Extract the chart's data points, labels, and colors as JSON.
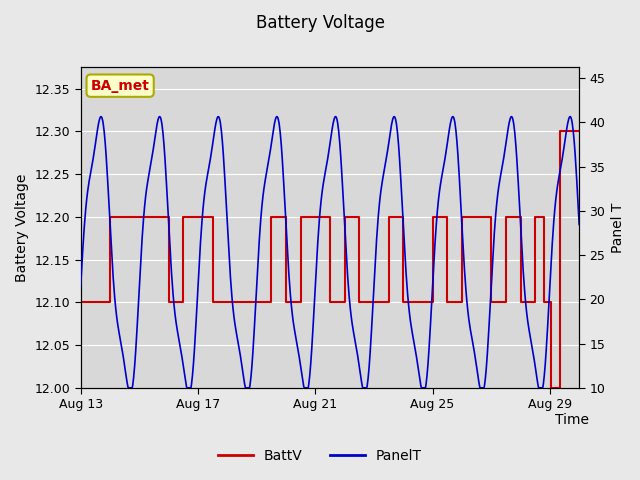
{
  "title": "Battery Voltage",
  "xlabel": "Time",
  "ylabel_left": "Battery Voltage",
  "ylabel_right": "Panel T",
  "ylim_left": [
    12.0,
    12.375
  ],
  "ylim_right": [
    10,
    46.25
  ],
  "xlim": [
    0,
    17
  ],
  "xtick_positions": [
    0,
    4,
    8,
    12,
    16
  ],
  "xtick_labels": [
    "Aug 13",
    "Aug 17",
    "Aug 21",
    "Aug 25",
    "Aug 29"
  ],
  "ytick_left": [
    12.0,
    12.05,
    12.1,
    12.15,
    12.2,
    12.25,
    12.3,
    12.35
  ],
  "ytick_right": [
    10,
    15,
    20,
    25,
    30,
    35,
    40,
    45
  ],
  "bg_color": "#e8e8e8",
  "plot_bg_color": "#d8d8d8",
  "annotation_text": "BA_met",
  "annotation_color": "#cc0000",
  "annotation_bg": "#ffffcc",
  "annotation_border": "#aaaa00",
  "batt_color": "#cc0000",
  "panel_color": "#0000cc",
  "legend_batt": "BattV",
  "legend_panel": "PanelT",
  "bv_steps_x": [
    0,
    1.0,
    1.0,
    3.0,
    3.0,
    3.5,
    3.5,
    4.5,
    4.5,
    6.5,
    6.5,
    7.0,
    7.0,
    7.5,
    7.5,
    8.5,
    8.5,
    9.0,
    9.0,
    9.5,
    9.5,
    10.5,
    10.5,
    11.0,
    11.0,
    12.0,
    12.0,
    12.5,
    12.5,
    13.0,
    13.0,
    14.0,
    14.0,
    14.5,
    14.5,
    15.0,
    15.0,
    15.5,
    15.5,
    15.8,
    15.8,
    16.05,
    16.05,
    16.35,
    16.35,
    17.0
  ],
  "bv_steps_y": [
    12.1,
    12.1,
    12.2,
    12.2,
    12.1,
    12.1,
    12.2,
    12.2,
    12.1,
    12.1,
    12.2,
    12.2,
    12.1,
    12.1,
    12.2,
    12.2,
    12.1,
    12.1,
    12.2,
    12.2,
    12.1,
    12.1,
    12.2,
    12.2,
    12.1,
    12.1,
    12.2,
    12.2,
    12.1,
    12.1,
    12.2,
    12.2,
    12.1,
    12.1,
    12.2,
    12.2,
    12.1,
    12.1,
    12.2,
    12.2,
    12.1,
    12.1,
    12.0,
    12.0,
    12.3,
    12.3
  ]
}
